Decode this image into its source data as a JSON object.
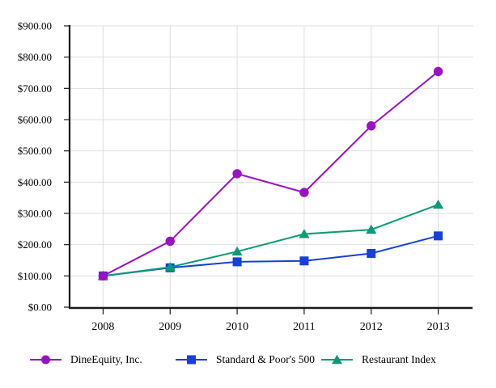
{
  "chart_data": {
    "type": "line",
    "title": "",
    "xlabel": "",
    "ylabel": "",
    "categories": [
      "2008",
      "2009",
      "2010",
      "2011",
      "2012",
      "2013"
    ],
    "y_tick_labels": [
      "$0.00",
      "$100.00",
      "$200.00",
      "$300.00",
      "$400.00",
      "$500.00",
      "$600.00",
      "$700.00",
      "$800.00",
      "$900.00"
    ],
    "ylim": [
      0,
      900
    ],
    "y_tick_step": 100,
    "grid": "on",
    "legend_position": "bottom",
    "series": [
      {
        "name": "DineEquity, Inc.",
        "marker": "circle",
        "color": "#9a10c3",
        "values": [
          100,
          211,
          427,
          367,
          580,
          754
        ]
      },
      {
        "name": "Standard & Poor's 500",
        "marker": "square",
        "color": "#1640d8",
        "values": [
          100,
          126,
          145,
          148,
          172,
          228
        ]
      },
      {
        "name": "Restaurant Index",
        "marker": "triangle",
        "color": "#0b9b77",
        "values": [
          100,
          128,
          178,
          234,
          248,
          328
        ]
      }
    ],
    "draw_order": [
      1,
      2,
      0
    ]
  },
  "colors": {
    "background": "#ffffff",
    "grid": "#dedede",
    "axis": "#1a1a1a",
    "text": "#000000"
  }
}
